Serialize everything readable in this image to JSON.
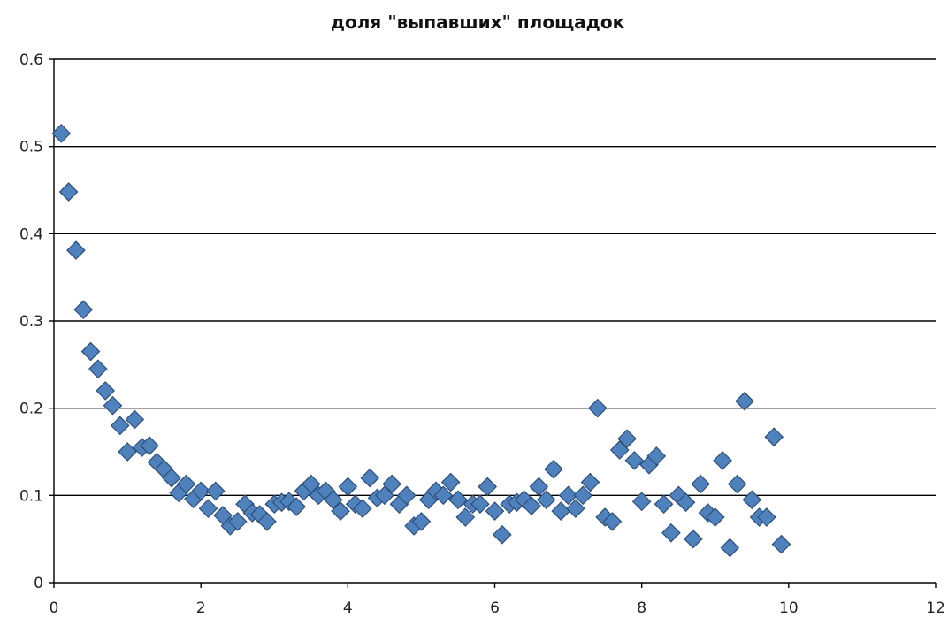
{
  "chart_data": {
    "type": "scatter",
    "title": "доля \"выпавших\" площадок",
    "xlabel": "",
    "ylabel": "",
    "xlim": [
      0,
      12
    ],
    "ylim": [
      0,
      0.6
    ],
    "x_ticks": [
      0,
      2,
      4,
      6,
      8,
      10,
      12
    ],
    "y_ticks": [
      0,
      0.1,
      0.2,
      0.3,
      0.4,
      0.5,
      0.6
    ],
    "x_tick_labels": [
      "0",
      "2",
      "4",
      "6",
      "8",
      "10",
      "12"
    ],
    "y_tick_labels": [
      "0",
      "0.1",
      "0.2",
      "0.3",
      "0.4",
      "0.5",
      "0.6"
    ],
    "grid": "horizontal",
    "legend": "none",
    "marker": "diamond",
    "marker_color": "#4f81bd",
    "marker_edge_color": "#2f4f7a",
    "series": [
      {
        "x": [
          0.1,
          0.2,
          0.3,
          0.4,
          0.5,
          0.6,
          0.7,
          0.8,
          0.9,
          1.0,
          1.1,
          1.2,
          1.3,
          1.4,
          1.5,
          1.6,
          1.7,
          1.8,
          1.9,
          2.0,
          2.1,
          2.2,
          2.3,
          2.4,
          2.5,
          2.6,
          2.7,
          2.8,
          2.9,
          3.0,
          3.1,
          3.2,
          3.3,
          3.4,
          3.5,
          3.6,
          3.7,
          3.8,
          3.9,
          4.0,
          4.1,
          4.2,
          4.3,
          4.4,
          4.5,
          4.6,
          4.7,
          4.8,
          4.9,
          5.0,
          5.1,
          5.2,
          5.3,
          5.4,
          5.5,
          5.6,
          5.7,
          5.8,
          5.9,
          6.0,
          6.1,
          6.2,
          6.3,
          6.4,
          6.5,
          6.6,
          6.7,
          6.8,
          6.9,
          7.0,
          7.1,
          7.2,
          7.3,
          7.4,
          7.5,
          7.6,
          7.7,
          7.8,
          7.9,
          8.0,
          8.1,
          8.2,
          8.3,
          8.4,
          8.5,
          8.6,
          8.7,
          8.8,
          8.9,
          9.0,
          9.1,
          9.2,
          9.3,
          9.4,
          9.5,
          9.6,
          9.7,
          9.8,
          9.9
        ],
        "y": [
          0.515,
          0.448,
          0.381,
          0.313,
          0.265,
          0.245,
          0.22,
          0.203,
          0.18,
          0.15,
          0.187,
          0.155,
          0.157,
          0.138,
          0.13,
          0.12,
          0.103,
          0.113,
          0.096,
          0.105,
          0.085,
          0.105,
          0.077,
          0.065,
          0.07,
          0.09,
          0.08,
          0.078,
          0.07,
          0.09,
          0.092,
          0.093,
          0.087,
          0.105,
          0.113,
          0.1,
          0.105,
          0.095,
          0.082,
          0.11,
          0.09,
          0.085,
          0.12,
          0.097,
          0.1,
          0.113,
          0.09,
          0.1,
          0.065,
          0.07,
          0.095,
          0.105,
          0.1,
          0.115,
          0.095,
          0.075,
          0.09,
          0.09,
          0.11,
          0.082,
          0.055,
          0.09,
          0.092,
          0.095,
          0.088,
          0.11,
          0.095,
          0.13,
          0.082,
          0.1,
          0.085,
          0.1,
          0.115,
          0.2,
          0.075,
          0.07,
          0.152,
          0.165,
          0.14,
          0.093,
          0.135,
          0.145,
          0.09,
          0.057,
          0.1,
          0.092,
          0.05,
          0.113,
          0.08,
          0.075,
          0.14,
          0.04,
          0.113,
          0.208,
          0.095,
          0.075,
          0.075,
          0.167,
          0.044
        ]
      }
    ]
  }
}
